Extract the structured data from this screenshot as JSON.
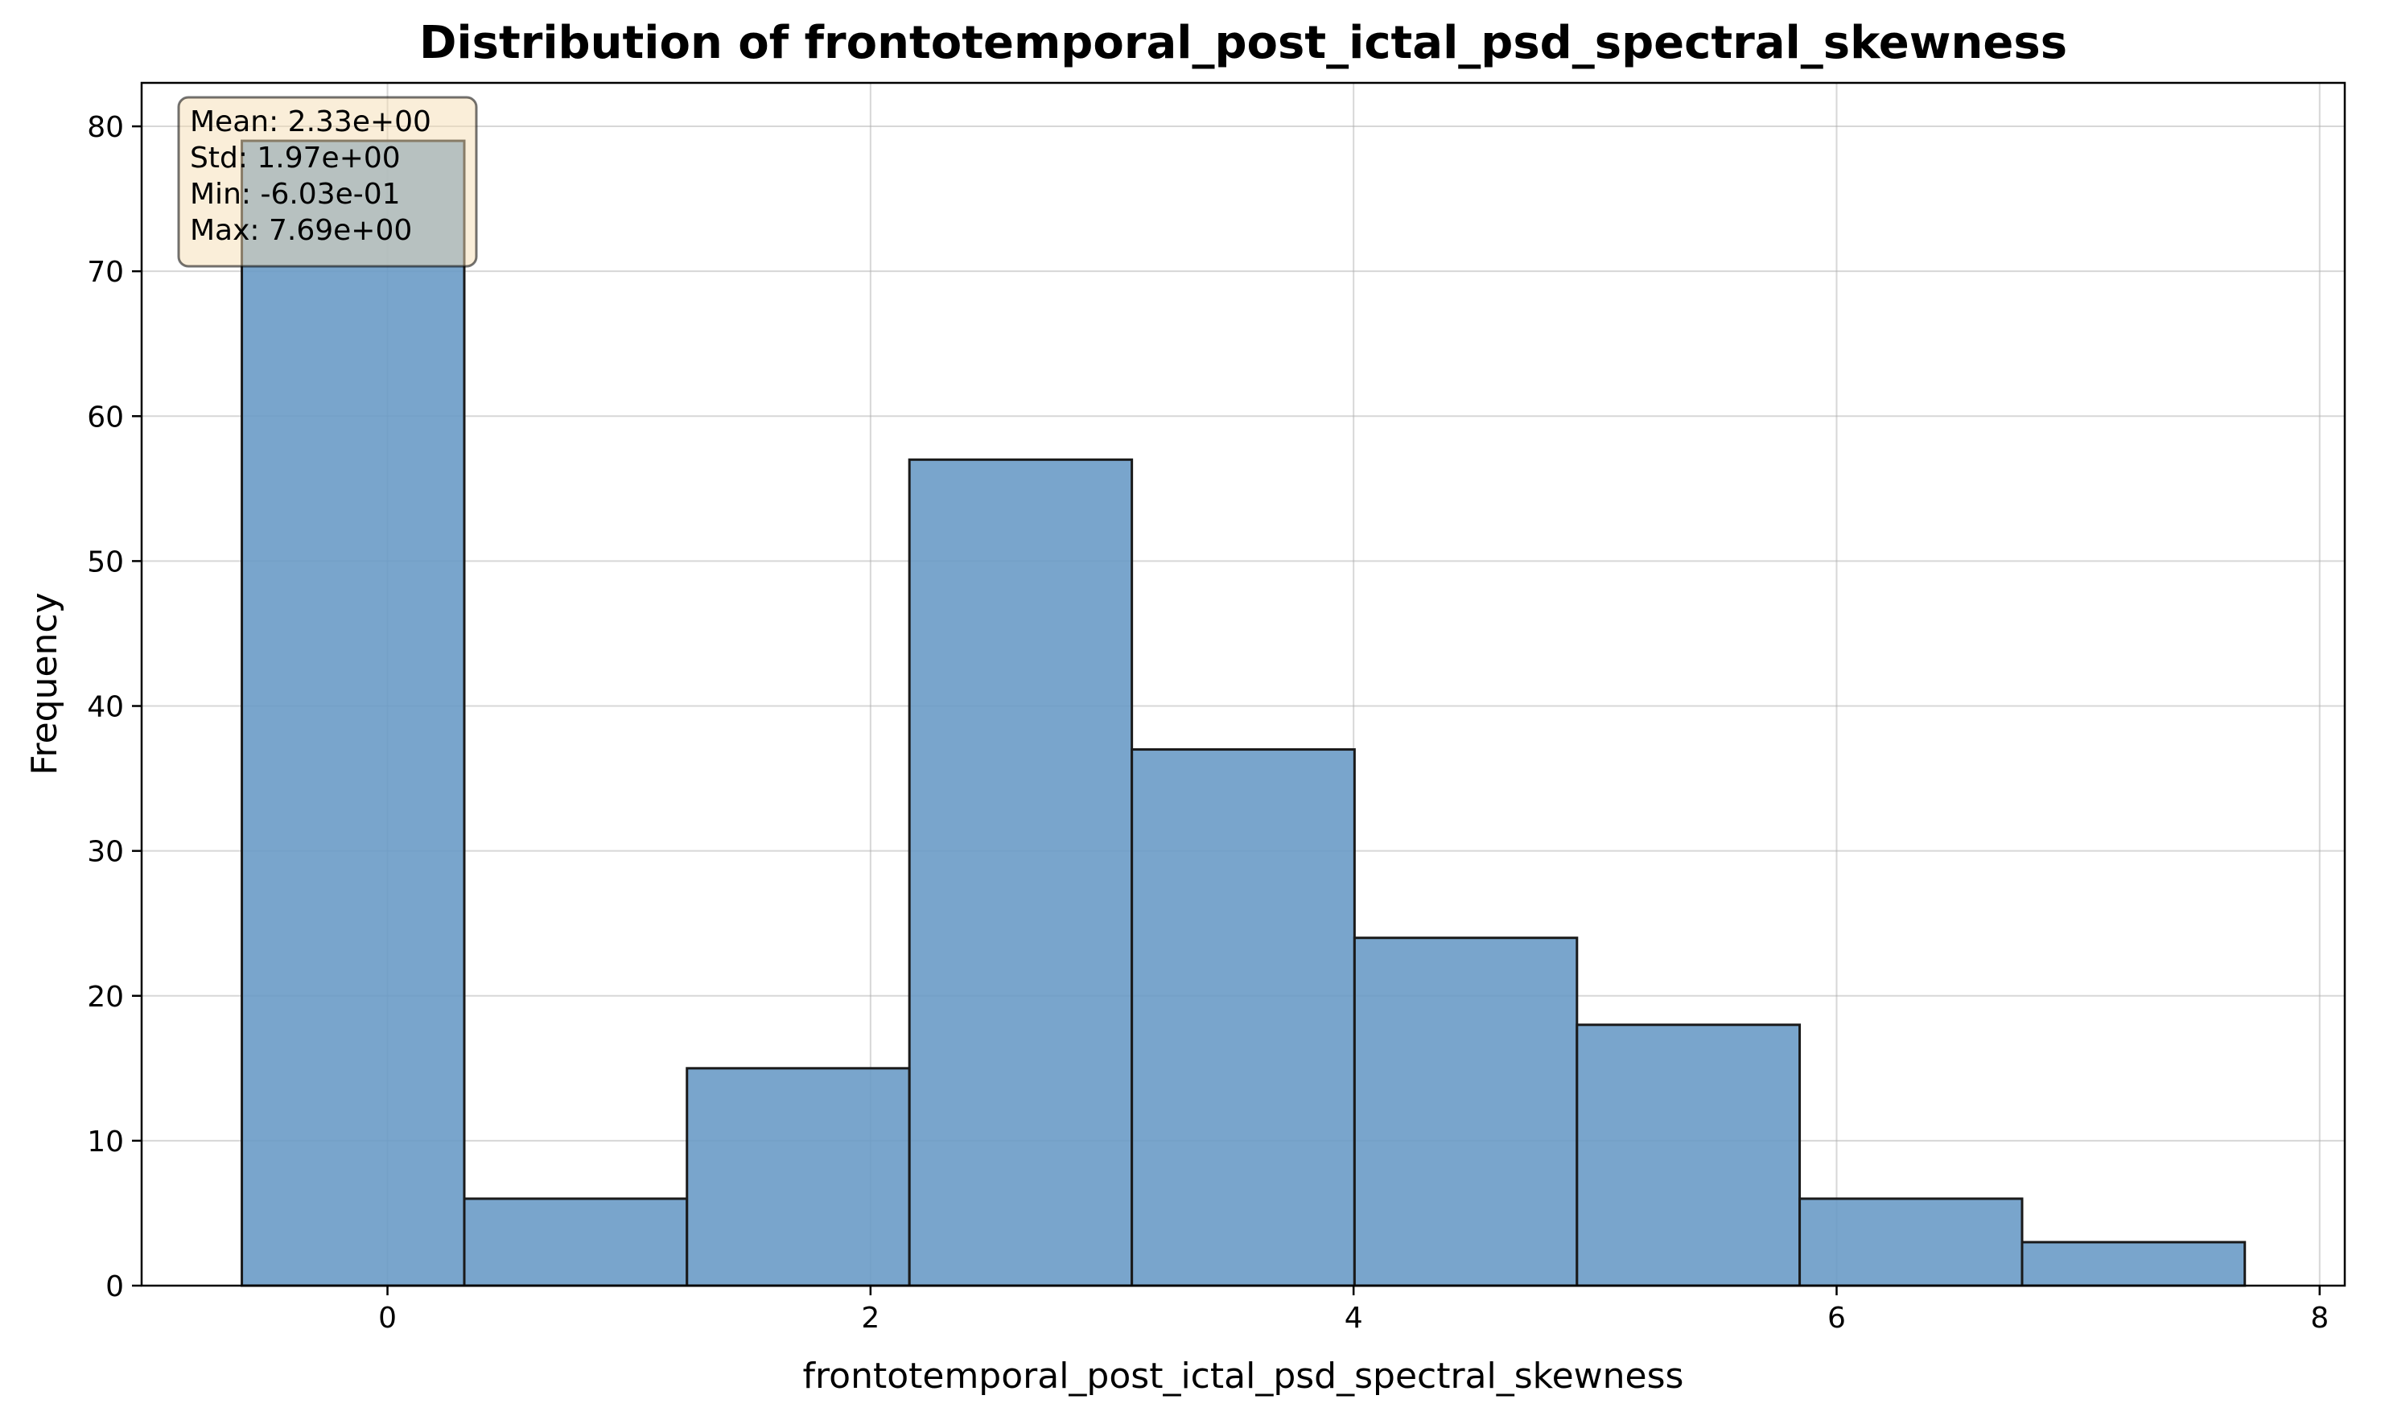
{
  "chart_data": {
    "type": "bar",
    "title": "Distribution of frontotemporal_post_ictal_psd_spectral_skewness",
    "xlabel": "frontotemporal_post_ictal_psd_spectral_skewness",
    "ylabel": "Frequency",
    "bin_edges": [
      -0.603,
      0.318,
      1.24,
      2.161,
      3.082,
      4.004,
      4.925,
      5.847,
      6.768,
      7.69
    ],
    "values": [
      79,
      6,
      15,
      57,
      37,
      24,
      18,
      6,
      3
    ],
    "xlim": [
      -1.018,
      8.104
    ],
    "ylim": [
      0,
      83
    ],
    "xticks": [
      0,
      2,
      4,
      6,
      8
    ],
    "yticks": [
      0,
      10,
      20,
      30,
      40,
      50,
      60,
      70,
      80
    ],
    "grid": true,
    "bar_color": "#6a9bc7",
    "edge_color": "#1a1a1a",
    "stats_box": {
      "lines": [
        "Mean: 2.33e+00",
        "Std: 1.97e+00",
        "Min: -6.03e-01",
        "Max: 7.69e+00"
      ],
      "background": "#f5deb3",
      "placement": "top-left"
    }
  }
}
